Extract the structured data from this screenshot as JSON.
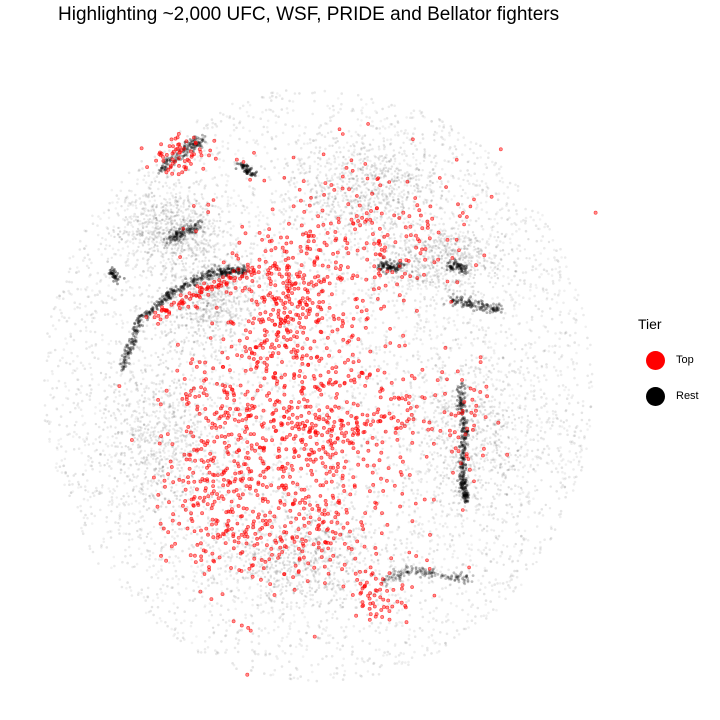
{
  "chart_data": {
    "type": "scatter",
    "title": "Highlighting ~2,000 UFC, WSF, PRIDE and Bellator fighters",
    "xlabel": "",
    "ylabel": "",
    "grid": false,
    "axes_visible": false,
    "legend": {
      "title": "Tier",
      "placement": "right",
      "items": [
        {
          "name": "Top",
          "color": "#ff0000"
        },
        {
          "name": "Rest",
          "color": "#000000"
        }
      ]
    },
    "series": [
      {
        "name": "Top",
        "color": "#ff0000",
        "approx_count": 2000
      },
      {
        "name": "Rest",
        "color": "#000000"
      }
    ]
  }
}
